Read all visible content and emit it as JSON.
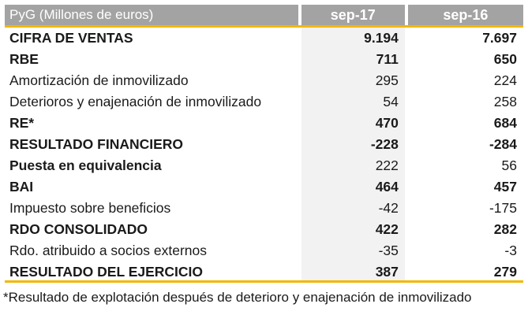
{
  "table": {
    "header": {
      "label": "PyG (Millones de euros)",
      "col1": "sep-17",
      "col2": "sep-16"
    },
    "rows": [
      {
        "label": "CIFRA DE VENTAS",
        "v1": "9.194",
        "v2": "7.697",
        "bold": true
      },
      {
        "label": "RBE",
        "v1": "711",
        "v2": "650",
        "bold": true
      },
      {
        "label": "Amortización de inmovilizado",
        "v1": "295",
        "v2": "224",
        "bold": false
      },
      {
        "label": "Deterioros y enajenación de inmovilizado",
        "v1": "54",
        "v2": "258",
        "bold": false
      },
      {
        "label": "RE*",
        "v1": "470",
        "v2": "684",
        "bold": true
      },
      {
        "label": "RESULTADO FINANCIERO",
        "v1": "-228",
        "v2": "-284",
        "bold": true
      },
      {
        "label": "Puesta en equivalencia",
        "v1": "222",
        "v2": "56",
        "bold": true,
        "v_normal": true
      },
      {
        "label": "BAI",
        "v1": "464",
        "v2": "457",
        "bold": true
      },
      {
        "label": "Impuesto sobre beneficios",
        "v1": "-42",
        "v2": "-175",
        "bold": false
      },
      {
        "label": "RDO CONSOLIDADO",
        "v1": "422",
        "v2": "282",
        "bold": true
      },
      {
        "label": "Rdo. atribuido a socios externos",
        "v1": "-35",
        "v2": "-3",
        "bold": false
      },
      {
        "label": "RESULTADO DEL EJERCICIO",
        "v1": "387",
        "v2": "279",
        "bold": true
      }
    ]
  },
  "footnote": "*Resultado de explotación después de deterioro y enajenación de inmovilizado",
  "colors": {
    "header_bg": "#a3a3a3",
    "accent": "#f2b705",
    "shade": "#f2f2f2"
  }
}
